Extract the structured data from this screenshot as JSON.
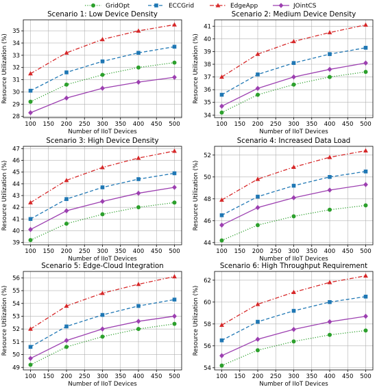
{
  "legend": {
    "items": [
      {
        "name": "GridOpt",
        "color": "#2ca02c",
        "dash": "dotted",
        "marker": "circle"
      },
      {
        "name": "ECCGrid",
        "color": "#1f77b4",
        "dash": "dashed",
        "marker": "square"
      },
      {
        "name": "EdgeApp",
        "color": "#d62728",
        "dash": "dashdot",
        "marker": "triangle"
      },
      {
        "name": "JOintCS",
        "color": "#9c3fb0",
        "dash": "solid",
        "marker": "diamond"
      }
    ],
    "placement": "top-center"
  },
  "chart_data": [
    {
      "type": "line",
      "title": "Scenario 1: Low Device Density",
      "xlabel": "Number of IIoT Devices",
      "ylabel": "Resource Utilization (%)",
      "x": [
        100,
        200,
        300,
        400,
        500
      ],
      "xticks": [
        100,
        150,
        200,
        250,
        300,
        350,
        400,
        450,
        500
      ],
      "xlim": [
        80,
        520
      ],
      "yticks": [
        28,
        29,
        30,
        31,
        32,
        33,
        34,
        35
      ],
      "ylim": [
        27.9,
        35.9
      ],
      "grid": true,
      "series": [
        {
          "name": "GridOpt",
          "values": [
            29.2,
            30.6,
            31.4,
            32.0,
            32.4
          ]
        },
        {
          "name": "ECCGrid",
          "values": [
            30.1,
            31.6,
            32.5,
            33.2,
            33.7
          ]
        },
        {
          "name": "EdgeApp",
          "values": [
            31.5,
            33.2,
            34.3,
            35.0,
            35.5
          ]
        },
        {
          "name": "JOintCS",
          "values": [
            28.3,
            29.5,
            30.3,
            30.8,
            31.2
          ]
        }
      ]
    },
    {
      "type": "line",
      "title": "Scenario 2: Medium Device Density",
      "xlabel": "Number of IIoT Devices",
      "ylabel": "Resource Utilization (%)",
      "x": [
        100,
        200,
        300,
        400,
        500
      ],
      "xticks": [
        100,
        150,
        200,
        250,
        300,
        350,
        400,
        450,
        500
      ],
      "xlim": [
        80,
        520
      ],
      "yticks": [
        34,
        35,
        36,
        37,
        38,
        39,
        40,
        41
      ],
      "ylim": [
        33.8,
        41.5
      ],
      "grid": true,
      "series": [
        {
          "name": "GridOpt",
          "values": [
            34.2,
            35.6,
            36.4,
            37.0,
            37.4
          ]
        },
        {
          "name": "ECCGrid",
          "values": [
            35.6,
            37.2,
            38.1,
            38.8,
            39.3
          ]
        },
        {
          "name": "EdgeApp",
          "values": [
            37.0,
            38.8,
            39.8,
            40.5,
            41.1
          ]
        },
        {
          "name": "JOintCS",
          "values": [
            34.7,
            36.1,
            37.0,
            37.6,
            38.1
          ]
        }
      ]
    },
    {
      "type": "line",
      "title": "Scenario 3: High Device Density",
      "xlabel": "Number of IIoT Devices",
      "ylabel": "Resource Utilization (%)",
      "x": [
        100,
        200,
        300,
        400,
        500
      ],
      "xticks": [
        100,
        150,
        200,
        250,
        300,
        350,
        400,
        450,
        500
      ],
      "xlim": [
        80,
        520
      ],
      "yticks": [
        39,
        40,
        41,
        42,
        43,
        44,
        45,
        46,
        47
      ],
      "ylim": [
        38.8,
        47.2
      ],
      "grid": true,
      "series": [
        {
          "name": "GridOpt",
          "values": [
            39.2,
            40.6,
            41.4,
            42.0,
            42.4
          ]
        },
        {
          "name": "ECCGrid",
          "values": [
            41.0,
            42.7,
            43.7,
            44.4,
            44.9
          ]
        },
        {
          "name": "EdgeApp",
          "values": [
            42.4,
            44.3,
            45.4,
            46.2,
            46.8
          ]
        },
        {
          "name": "JOintCS",
          "values": [
            40.1,
            41.7,
            42.5,
            43.2,
            43.7
          ]
        }
      ]
    },
    {
      "type": "line",
      "title": "Scenario 4: Increased Data Load",
      "xlabel": "Number of IIoT Devices",
      "ylabel": "Resource Utilization (%)",
      "x": [
        100,
        200,
        300,
        400,
        500
      ],
      "xticks": [
        100,
        150,
        200,
        250,
        300,
        350,
        400,
        450,
        500
      ],
      "xlim": [
        80,
        520
      ],
      "yticks": [
        44,
        46,
        48,
        50,
        52
      ],
      "ylim": [
        43.8,
        52.8
      ],
      "grid": true,
      "series": [
        {
          "name": "GridOpt",
          "values": [
            44.2,
            45.6,
            46.4,
            47.0,
            47.4
          ]
        },
        {
          "name": "ECCGrid",
          "values": [
            46.5,
            48.2,
            49.2,
            50.0,
            50.5
          ]
        },
        {
          "name": "EdgeApp",
          "values": [
            47.9,
            49.8,
            50.9,
            51.8,
            52.4
          ]
        },
        {
          "name": "JOintCS",
          "values": [
            45.6,
            47.2,
            48.1,
            48.8,
            49.3
          ]
        }
      ]
    },
    {
      "type": "line",
      "title": "Scenario 5: Edge-Cloud Integration",
      "xlabel": "Number of IIoT Devices",
      "ylabel": "Resource Utilization (%)",
      "x": [
        100,
        200,
        300,
        400,
        500
      ],
      "xticks": [
        100,
        150,
        200,
        250,
        300,
        350,
        400,
        450,
        500
      ],
      "xlim": [
        80,
        520
      ],
      "yticks": [
        49,
        50,
        51,
        52,
        53,
        54,
        55,
        56
      ],
      "ylim": [
        48.8,
        56.5
      ],
      "grid": true,
      "series": [
        {
          "name": "GridOpt",
          "values": [
            49.2,
            50.6,
            51.4,
            52.0,
            52.4
          ]
        },
        {
          "name": "ECCGrid",
          "values": [
            50.6,
            52.2,
            53.1,
            53.8,
            54.3
          ]
        },
        {
          "name": "EdgeApp",
          "values": [
            52.0,
            53.8,
            54.8,
            55.5,
            56.1
          ]
        },
        {
          "name": "JOintCS",
          "values": [
            49.7,
            51.1,
            52.0,
            52.6,
            53.0
          ]
        }
      ]
    },
    {
      "type": "line",
      "title": "Scenario 6: High Throughput Requirement",
      "xlabel": "Number of IIoT Devices",
      "ylabel": "Resource Utilization (%)",
      "x": [
        100,
        200,
        300,
        400,
        500
      ],
      "xticks": [
        100,
        150,
        200,
        250,
        300,
        350,
        400,
        450,
        500
      ],
      "xlim": [
        80,
        520
      ],
      "yticks": [
        54,
        56,
        58,
        60,
        62
      ],
      "ylim": [
        53.8,
        62.8
      ],
      "grid": true,
      "series": [
        {
          "name": "GridOpt",
          "values": [
            54.2,
            55.6,
            56.4,
            57.0,
            57.4
          ]
        },
        {
          "name": "ECCGrid",
          "values": [
            56.5,
            58.2,
            59.2,
            60.0,
            60.5
          ]
        },
        {
          "name": "EdgeApp",
          "values": [
            57.9,
            59.8,
            60.9,
            61.8,
            62.4
          ]
        },
        {
          "name": "JOintCS",
          "values": [
            55.1,
            56.6,
            57.5,
            58.2,
            58.7
          ]
        }
      ]
    }
  ]
}
